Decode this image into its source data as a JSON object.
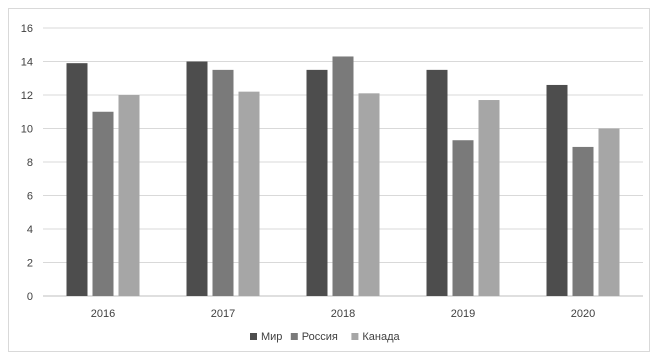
{
  "chart_data": {
    "type": "bar",
    "categories": [
      "2016",
      "2017",
      "2018",
      "2019",
      "2020"
    ],
    "series": [
      {
        "name": "Мир",
        "color": "#4d4d4d",
        "values": [
          13.9,
          14.0,
          13.5,
          13.5,
          12.6
        ]
      },
      {
        "name": "Россия",
        "color": "#7a7a7a",
        "values": [
          11.0,
          13.5,
          14.3,
          9.3,
          8.9
        ]
      },
      {
        "name": "Канада",
        "color": "#a6a6a6",
        "values": [
          12.0,
          12.2,
          12.1,
          11.7,
          10.0
        ]
      }
    ],
    "yticks": [
      "0",
      "2",
      "4",
      "6",
      "8",
      "10",
      "12",
      "14",
      "16"
    ],
    "ylim": [
      0,
      16
    ],
    "grid": true,
    "legend_position": "bottom"
  }
}
